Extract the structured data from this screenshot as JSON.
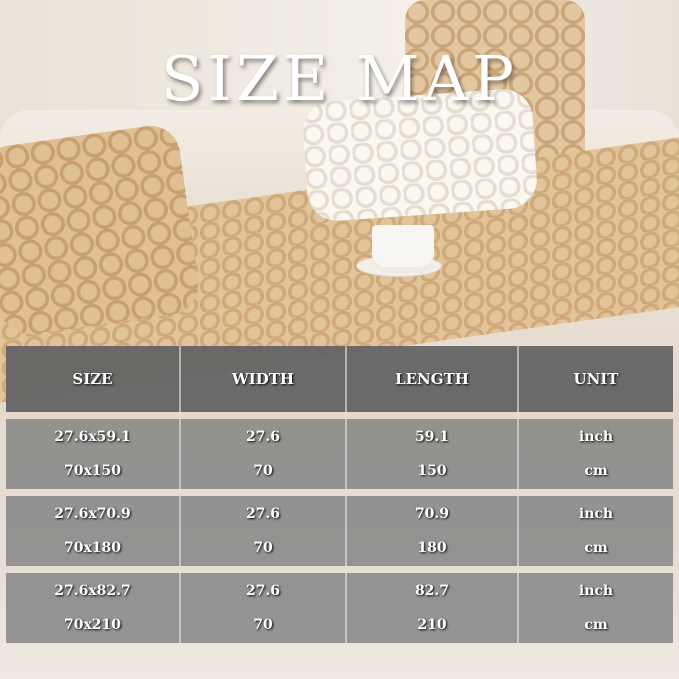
{
  "title": "SIZE MAP",
  "table": {
    "headers": [
      "SIZE",
      "WIDTH",
      "LENGTH",
      "UNIT"
    ],
    "rows": [
      {
        "size_inch": "27.6x59.1",
        "size_cm": "70x150",
        "width_inch": "27.6",
        "width_cm": "70",
        "length_inch": "59.1",
        "length_cm": "150",
        "unit_inch": "inch",
        "unit_cm": "cm"
      },
      {
        "size_inch": "27.6x70.9",
        "size_cm": "70x180",
        "width_inch": "27.6",
        "width_cm": "70",
        "length_inch": "70.9",
        "length_cm": "180",
        "unit_inch": "inch",
        "unit_cm": "cm"
      },
      {
        "size_inch": "27.6x82.7",
        "size_cm": "70x210",
        "width_inch": "27.6",
        "width_cm": "70",
        "length_inch": "82.7",
        "length_cm": "210",
        "unit_inch": "inch",
        "unit_cm": "cm"
      }
    ]
  },
  "colors": {
    "header_bg": "#646464",
    "row_bg": "#808080",
    "cover": "#d9b98c"
  }
}
